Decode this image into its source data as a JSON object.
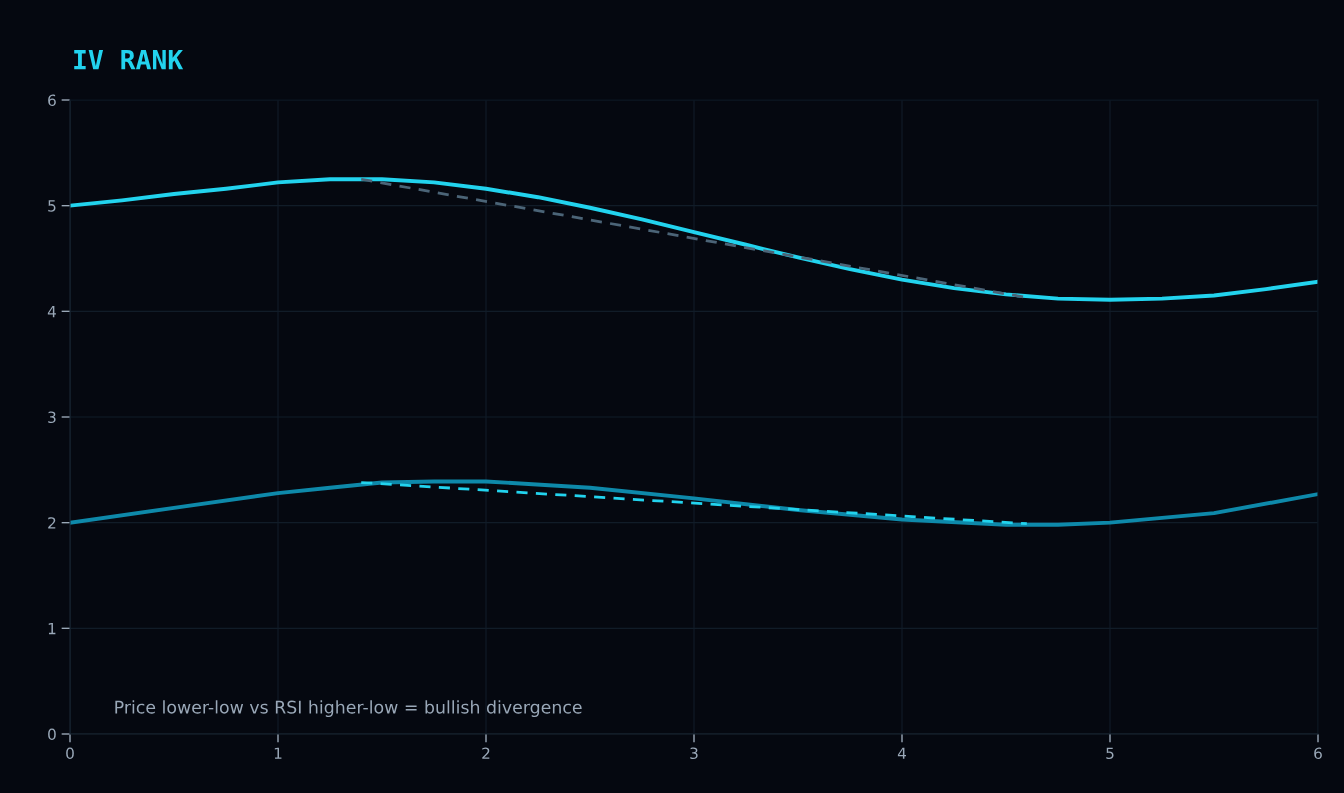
{
  "chart_data": {
    "type": "line",
    "title": "IV RANK",
    "series": [
      {
        "color": "#22d3ee",
        "x": [
          0,
          0.25,
          0.5,
          0.75,
          1.0,
          1.25,
          1.5,
          1.75,
          2.0,
          2.25,
          2.5,
          2.75,
          3.0,
          3.25,
          3.5,
          3.75,
          4.0,
          4.25,
          4.5,
          4.75,
          5.0,
          5.25,
          5.5,
          5.75,
          6.0
        ],
        "values": [
          5.0,
          5.05,
          5.11,
          5.16,
          5.22,
          5.25,
          5.25,
          5.22,
          5.16,
          5.08,
          4.98,
          4.87,
          4.75,
          4.63,
          4.51,
          4.4,
          4.3,
          4.22,
          4.16,
          4.12,
          4.11,
          4.12,
          4.15,
          4.21,
          4.28
        ]
      },
      {
        "color": "#0e89aa",
        "x": [
          0,
          0.5,
          1.0,
          1.25,
          1.5,
          1.75,
          2.0,
          2.5,
          3.0,
          3.5,
          4.0,
          4.5,
          4.75,
          5.0,
          5.5,
          6.0
        ],
        "values": [
          2.0,
          2.14,
          2.28,
          2.33,
          2.38,
          2.39,
          2.39,
          2.33,
          2.23,
          2.12,
          2.03,
          1.98,
          1.98,
          2.0,
          2.09,
          2.27
        ]
      },
      {
        "color": "#4b6477",
        "line_style": "dashed",
        "x": [
          1.4,
          4.6
        ],
        "values": [
          5.25,
          4.13
        ]
      },
      {
        "color": "#22d3ee",
        "line_style": "dashed",
        "x": [
          1.4,
          4.6
        ],
        "values": [
          2.38,
          1.99
        ]
      }
    ],
    "xlim": [
      0,
      6
    ],
    "ylim": [
      0,
      6
    ],
    "xticks": [
      0,
      1,
      2,
      3,
      4,
      5,
      6
    ],
    "yticks": [
      0,
      1,
      2,
      3,
      4,
      5,
      6
    ],
    "grid": true,
    "annotations": [
      "Price lower-low vs RSI higher-low = bullish divergence"
    ]
  }
}
